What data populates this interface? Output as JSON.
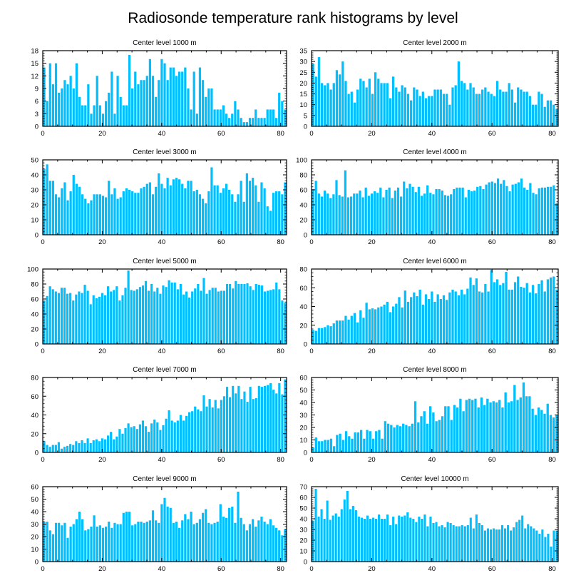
{
  "figure_title": "Radiosonde temperature rank histograms by level",
  "bar_color": "#00bfff",
  "chart_data": [
    {
      "type": "bar",
      "title": "Center level 1000 m",
      "xlim": [
        0,
        82
      ],
      "ylim": [
        0,
        18
      ],
      "xticks": [
        0,
        20,
        40,
        60,
        80
      ],
      "yticks": [
        0,
        3,
        6,
        9,
        12,
        15,
        18
      ],
      "values": [
        14,
        6,
        15,
        10,
        15,
        8,
        9,
        11,
        10,
        12,
        9,
        15,
        7,
        5,
        5,
        10,
        3,
        5,
        12,
        5,
        3,
        6,
        8,
        13,
        3,
        12,
        7,
        5,
        5,
        17,
        9,
        13,
        10,
        11,
        11,
        12,
        16,
        12,
        7,
        11,
        16,
        15,
        11,
        14,
        14,
        12,
        13,
        13,
        14,
        9,
        4,
        13,
        3,
        14,
        11,
        7,
        9,
        9,
        4,
        4,
        4,
        5,
        3,
        2,
        3,
        6,
        4,
        2,
        1,
        1,
        2,
        2,
        4,
        2,
        2,
        2,
        4,
        4,
        4,
        2,
        8,
        6,
        4
      ]
    },
    {
      "type": "bar",
      "title": "Center level 2000 m",
      "xlim": [
        0,
        82
      ],
      "ylim": [
        0,
        35
      ],
      "xticks": [
        0,
        20,
        40,
        60,
        80
      ],
      "yticks": [
        0,
        5,
        10,
        15,
        20,
        25,
        30,
        35
      ],
      "values": [
        29,
        23,
        32,
        20,
        19,
        20,
        17,
        20,
        26,
        24,
        30,
        21,
        15,
        16,
        11,
        17,
        22,
        21,
        18,
        22,
        15,
        25,
        22,
        20,
        20,
        20,
        13,
        23,
        18,
        16,
        19,
        18,
        15,
        12,
        18,
        17,
        14,
        16,
        13,
        14,
        14,
        17,
        17,
        17,
        15,
        15,
        10,
        18,
        19,
        30,
        21,
        20,
        17,
        20,
        18,
        15,
        15,
        17,
        18,
        16,
        15,
        14,
        21,
        17,
        16,
        16,
        20,
        17,
        11,
        18,
        17,
        16,
        16,
        14,
        10,
        10,
        16,
        15,
        9,
        12,
        12,
        10,
        8
      ]
    },
    {
      "type": "bar",
      "title": "Center level 3000 m",
      "xlim": [
        0,
        82
      ],
      "ylim": [
        0,
        50
      ],
      "xticks": [
        0,
        20,
        40,
        60,
        80
      ],
      "yticks": [
        0,
        10,
        20,
        30,
        40,
        50
      ],
      "values": [
        44,
        47,
        36,
        36,
        27,
        25,
        31,
        35,
        23,
        29,
        40,
        34,
        32,
        27,
        24,
        21,
        23,
        27,
        27,
        27,
        26,
        25,
        36,
        27,
        31,
        24,
        25,
        29,
        31,
        30,
        29,
        28,
        28,
        31,
        32,
        34,
        35,
        27,
        32,
        41,
        34,
        31,
        38,
        33,
        37,
        38,
        37,
        34,
        31,
        36,
        36,
        29,
        30,
        27,
        24,
        21,
        29,
        45,
        33,
        33,
        28,
        31,
        34,
        30,
        27,
        22,
        27,
        36,
        22,
        41,
        36,
        38,
        33,
        22,
        35,
        31,
        19,
        16,
        28,
        29,
        29,
        27,
        35
      ]
    },
    {
      "type": "bar",
      "title": "Center level 4000 m",
      "xlim": [
        0,
        82
      ],
      "ylim": [
        0,
        100
      ],
      "xticks": [
        0,
        20,
        40,
        60,
        80
      ],
      "yticks": [
        0,
        20,
        40,
        60,
        80,
        100
      ],
      "values": [
        61,
        72,
        55,
        51,
        59,
        55,
        49,
        54,
        73,
        53,
        51,
        86,
        50,
        51,
        55,
        55,
        59,
        50,
        63,
        52,
        55,
        58,
        56,
        63,
        50,
        60,
        63,
        49,
        59,
        63,
        51,
        71,
        62,
        68,
        64,
        57,
        64,
        52,
        55,
        66,
        56,
        54,
        61,
        61,
        59,
        53,
        52,
        54,
        61,
        63,
        63,
        63,
        50,
        60,
        58,
        59,
        64,
        65,
        61,
        67,
        70,
        71,
        69,
        75,
        68,
        73,
        65,
        58,
        67,
        68,
        70,
        75,
        63,
        60,
        69,
        56,
        54,
        62,
        63,
        63,
        64,
        64,
        66,
        42
      ]
    },
    {
      "type": "bar",
      "title": "Center level 5000 m",
      "xlim": [
        0,
        82
      ],
      "ylim": [
        0,
        100
      ],
      "xticks": [
        0,
        20,
        40,
        60,
        80
      ],
      "yticks": [
        0,
        20,
        40,
        60,
        80,
        100
      ],
      "values": [
        58,
        64,
        77,
        73,
        70,
        68,
        75,
        75,
        67,
        68,
        58,
        66,
        70,
        68,
        79,
        71,
        53,
        65,
        61,
        63,
        68,
        65,
        77,
        70,
        72,
        77,
        58,
        65,
        75,
        98,
        72,
        71,
        73,
        76,
        78,
        84,
        71,
        80,
        70,
        75,
        67,
        78,
        76,
        85,
        82,
        82,
        73,
        80,
        66,
        70,
        62,
        70,
        74,
        80,
        71,
        88,
        67,
        72,
        75,
        75,
        70,
        71,
        71,
        80,
        80,
        74,
        84,
        80,
        80,
        80,
        81,
        77,
        72,
        80,
        79,
        78,
        70,
        71,
        72,
        73,
        82,
        73,
        58,
        55
      ]
    },
    {
      "type": "bar",
      "title": "Center level 6000 m",
      "xlim": [
        0,
        82
      ],
      "ylim": [
        0,
        80
      ],
      "xticks": [
        0,
        20,
        40,
        60,
        80
      ],
      "yticks": [
        0,
        20,
        40,
        60,
        80
      ],
      "values": [
        15,
        14,
        17,
        17,
        18,
        20,
        19,
        22,
        25,
        25,
        25,
        30,
        26,
        30,
        33,
        23,
        36,
        28,
        44,
        37,
        38,
        37,
        39,
        40,
        42,
        45,
        34,
        40,
        43,
        50,
        39,
        57,
        45,
        50,
        55,
        51,
        58,
        42,
        53,
        48,
        56,
        45,
        53,
        48,
        52,
        47,
        55,
        58,
        56,
        52,
        58,
        53,
        59,
        71,
        63,
        70,
        56,
        55,
        64,
        56,
        79,
        66,
        69,
        63,
        65,
        77,
        58,
        58,
        66,
        72,
        61,
        60,
        65,
        55,
        63,
        54,
        64,
        68,
        56,
        69,
        71,
        72,
        58
      ]
    },
    {
      "type": "bar",
      "title": "Center level 7000 m",
      "xlim": [
        0,
        82
      ],
      "ylim": [
        0,
        80
      ],
      "xticks": [
        0,
        20,
        40,
        60,
        80
      ],
      "yticks": [
        0,
        20,
        40,
        60,
        80
      ],
      "values": [
        12,
        8,
        6,
        8,
        8,
        11,
        4,
        6,
        7,
        9,
        8,
        12,
        10,
        13,
        10,
        15,
        10,
        13,
        14,
        12,
        15,
        14,
        18,
        22,
        14,
        17,
        25,
        20,
        26,
        31,
        27,
        28,
        25,
        30,
        34,
        28,
        22,
        31,
        35,
        32,
        24,
        29,
        36,
        45,
        34,
        32,
        34,
        40,
        34,
        39,
        43,
        44,
        49,
        46,
        44,
        61,
        49,
        57,
        48,
        56,
        47,
        56,
        60,
        70,
        59,
        71,
        63,
        71,
        57,
        65,
        54,
        70,
        57,
        58,
        71,
        70,
        71,
        72,
        74,
        67,
        63,
        74,
        62,
        78
      ]
    },
    {
      "type": "bar",
      "title": "Center level 8000 m",
      "xlim": [
        0,
        82
      ],
      "ylim": [
        0,
        60
      ],
      "xticks": [
        0,
        20,
        40,
        60,
        80
      ],
      "yticks": [
        0,
        10,
        20,
        30,
        40,
        50,
        60
      ],
      "values": [
        4,
        12,
        9,
        9,
        10,
        10,
        11,
        5,
        14,
        15,
        10,
        17,
        13,
        11,
        16,
        16,
        18,
        11,
        18,
        17,
        11,
        17,
        18,
        11,
        25,
        23,
        22,
        20,
        22,
        21,
        23,
        22,
        21,
        23,
        41,
        24,
        29,
        33,
        23,
        37,
        32,
        25,
        26,
        29,
        37,
        37,
        26,
        38,
        36,
        43,
        33,
        42,
        43,
        42,
        43,
        36,
        44,
        38,
        43,
        40,
        41,
        40,
        42,
        36,
        48,
        40,
        41,
        54,
        42,
        44,
        56,
        45,
        45,
        35,
        30,
        36,
        34,
        31,
        39,
        30,
        28,
        30
      ]
    },
    {
      "type": "bar",
      "title": "Center level 9000 m",
      "xlim": [
        0,
        82
      ],
      "ylim": [
        0,
        60
      ],
      "xticks": [
        0,
        20,
        40,
        60,
        80
      ],
      "yticks": [
        0,
        10,
        20,
        30,
        40,
        50,
        60
      ],
      "values": [
        32,
        32,
        25,
        22,
        31,
        31,
        29,
        31,
        19,
        28,
        30,
        34,
        40,
        34,
        25,
        26,
        28,
        37,
        28,
        29,
        27,
        28,
        32,
        27,
        31,
        30,
        30,
        39,
        40,
        40,
        29,
        30,
        32,
        32,
        31,
        32,
        33,
        41,
        33,
        31,
        46,
        51,
        44,
        43,
        31,
        32,
        27,
        33,
        38,
        34,
        40,
        30,
        31,
        34,
        39,
        42,
        31,
        30,
        31,
        32,
        46,
        36,
        35,
        43,
        44,
        31,
        56,
        35,
        30,
        25,
        30,
        34,
        28,
        33,
        36,
        32,
        30,
        34,
        29,
        27,
        25,
        21,
        26
      ]
    },
    {
      "type": "bar",
      "title": "Center level 10000 m",
      "xlim": [
        0,
        82
      ],
      "ylim": [
        0,
        70
      ],
      "xticks": [
        0,
        20,
        40,
        60,
        80
      ],
      "yticks": [
        0,
        10,
        20,
        30,
        40,
        50,
        60,
        70
      ],
      "values": [
        38,
        68,
        42,
        49,
        40,
        57,
        39,
        43,
        45,
        42,
        49,
        58,
        66,
        49,
        52,
        48,
        42,
        41,
        40,
        43,
        40,
        41,
        40,
        44,
        40,
        40,
        44,
        34,
        42,
        35,
        43,
        42,
        43,
        46,
        41,
        40,
        37,
        42,
        40,
        44,
        33,
        42,
        36,
        37,
        33,
        34,
        32,
        37,
        36,
        34,
        33,
        33,
        34,
        33,
        34,
        41,
        31,
        44,
        36,
        34,
        29,
        31,
        30,
        31,
        30,
        30,
        34,
        31,
        34,
        29,
        32,
        37,
        39,
        43,
        31,
        35,
        33,
        31,
        29,
        26,
        30,
        23,
        26,
        14,
        29,
        29
      ]
    }
  ]
}
